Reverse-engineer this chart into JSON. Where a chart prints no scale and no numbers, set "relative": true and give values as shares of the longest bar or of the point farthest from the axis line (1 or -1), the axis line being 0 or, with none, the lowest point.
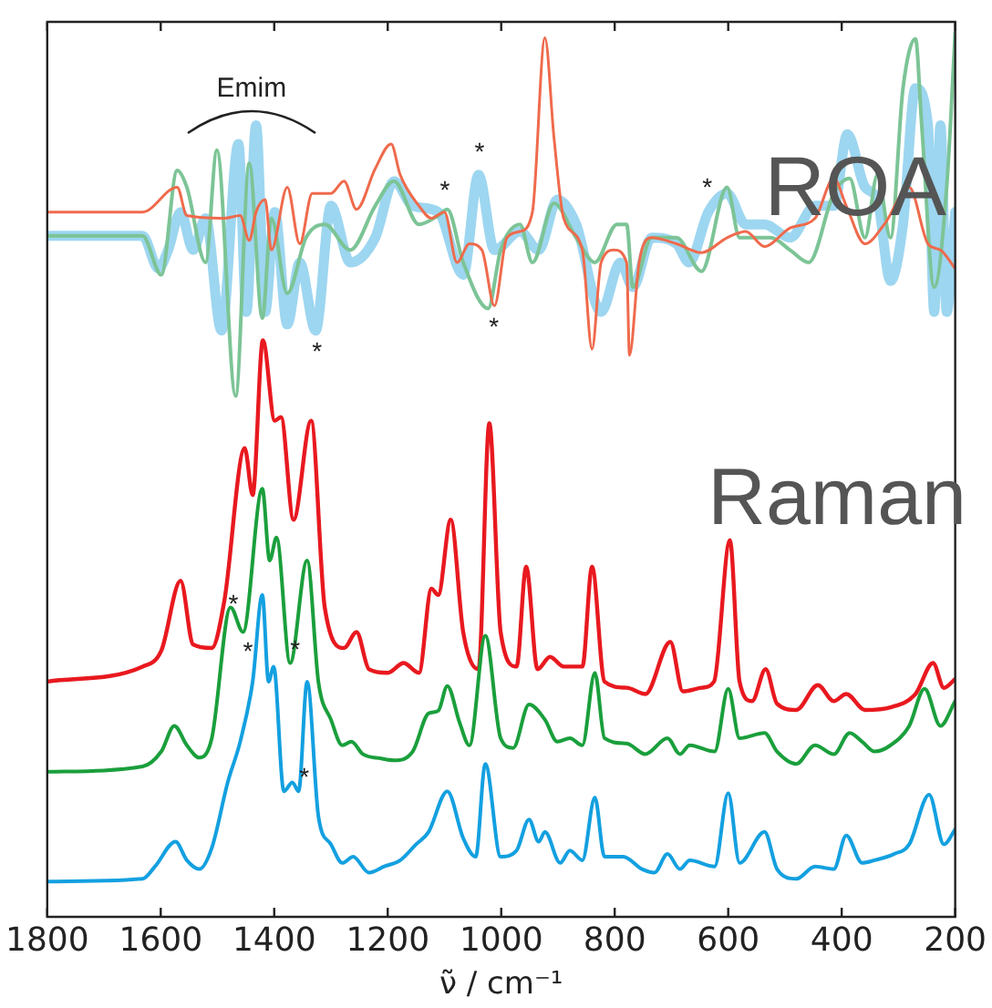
{
  "chart_data": {
    "type": "line",
    "xlabel": "ν̃ / cm⁻¹",
    "xlim": [
      1800,
      200
    ],
    "xticks": [
      1800,
      1600,
      1400,
      1200,
      1000,
      800,
      600,
      400,
      200
    ],
    "relative": true,
    "grid": false,
    "legend": false,
    "tick_labels": "x",
    "marker": "none",
    "line_style": "solid",
    "annotations": [
      "ROA",
      "Raman",
      "Emim",
      "*",
      "*",
      "*",
      "*",
      "*",
      "*",
      "*",
      "*",
      "*"
    ],
    "series": [
      {
        "color": "#9dd6f0",
        "x": [
          1800,
          1632,
          1604,
          1587,
          1565,
          1543,
          1521,
          1493,
          1463,
          1449,
          1432,
          1416,
          1399,
          1377,
          1355,
          1327,
          1300,
          1266,
          1222,
          1189,
          1156,
          1111,
          1067,
          1040,
          1012,
          967,
          934,
          901,
          868,
          824,
          790,
          768,
          735,
          691,
          669,
          635,
          602,
          569,
          536,
          491,
          447,
          414,
          390,
          359,
          337,
          314,
          292,
          270,
          248,
          237,
          226,
          215,
          200
        ],
        "values": [
          0.77,
          0.77,
          0.733,
          0.754,
          0.797,
          0.754,
          0.79,
          0.663,
          0.874,
          0.684,
          0.895,
          0.684,
          0.797,
          0.67,
          0.74,
          0.663,
          0.804,
          0.74,
          0.768,
          0.832,
          0.804,
          0.797,
          0.726,
          0.839,
          0.754,
          0.775,
          0.754,
          0.811,
          0.783,
          0.684,
          0.74,
          0.712,
          0.768,
          0.761,
          0.74,
          0.797,
          0.818,
          0.783,
          0.783,
          0.768,
          0.804,
          0.804,
          0.885,
          0.825,
          0.811,
          0.719,
          0.783,
          0.937,
          0.895,
          0.684,
          0.895,
          0.684,
          0.797
        ]
      },
      {
        "color": "#7cc496",
        "x": [
          1800,
          1632,
          1599,
          1571,
          1554,
          1521,
          1501,
          1468,
          1444,
          1421,
          1405,
          1377,
          1344,
          1311,
          1266,
          1222,
          1189,
          1145,
          1111,
          1095,
          1067,
          1023,
          1001,
          967,
          945,
          907,
          868,
          835,
          796,
          779,
          768,
          735,
          691,
          647,
          602,
          580,
          525,
          491,
          458,
          414,
          386,
          359,
          337,
          314,
          292,
          270,
          259,
          237,
          215,
          200
        ],
        "values": [
          0.77,
          0.77,
          0.726,
          0.844,
          0.825,
          0.74,
          0.867,
          0.589,
          0.852,
          0.677,
          0.79,
          0.705,
          0.768,
          0.783,
          0.754,
          0.804,
          0.832,
          0.783,
          0.793,
          0.8,
          0.74,
          0.688,
          0.754,
          0.783,
          0.74,
          0.807,
          0.768,
          0.74,
          0.783,
          0.783,
          0.712,
          0.768,
          0.768,
          0.73,
          0.825,
          0.768,
          0.768,
          0.754,
          0.74,
          0.818,
          0.835,
          0.768,
          0.839,
          0.768,
          0.937,
          0.993,
          0.895,
          0.712,
          0.825,
          1.0
        ]
      },
      {
        "color": "#ef6a4c",
        "x": [
          1800,
          1632,
          1571,
          1554,
          1488,
          1460,
          1444,
          1432,
          1416,
          1405,
          1377,
          1355,
          1333,
          1300,
          1277,
          1255,
          1222,
          1194,
          1178,
          1145,
          1123,
          1100,
          1078,
          1056,
          1034,
          1012,
          990,
          967,
          945,
          923,
          907,
          890,
          857,
          840,
          824,
          801,
          779,
          774,
          757,
          735,
          691,
          647,
          602,
          569,
          536,
          491,
          447,
          414,
          392,
          359,
          325,
          281,
          248,
          226,
          200
        ],
        "values": [
          0.797,
          0.797,
          0.825,
          0.793,
          0.79,
          0.793,
          0.765,
          0.797,
          0.811,
          0.754,
          0.825,
          0.761,
          0.818,
          0.818,
          0.832,
          0.8,
          0.846,
          0.874,
          0.839,
          0.804,
          0.79,
          0.797,
          0.74,
          0.761,
          0.754,
          0.691,
          0.768,
          0.775,
          0.797,
          0.994,
          0.881,
          0.79,
          0.754,
          0.642,
          0.74,
          0.754,
          0.74,
          0.635,
          0.74,
          0.768,
          0.761,
          0.751,
          0.768,
          0.775,
          0.758,
          0.779,
          0.79,
          0.835,
          0.804,
          0.761,
          0.783,
          0.825,
          0.761,
          0.754,
          0.733
        ]
      },
      {
        "color": "#e8191f",
        "x": [
          1800,
          1632,
          1599,
          1565,
          1543,
          1510,
          1488,
          1452,
          1438,
          1420,
          1399,
          1388,
          1366,
          1335,
          1311,
          1277,
          1255,
          1233,
          1200,
          1172,
          1145,
          1123,
          1111,
          1089,
          1067,
          1040,
          1021,
          1001,
          973,
          956,
          936,
          914,
          890,
          857,
          840,
          818,
          779,
          746,
          702,
          680,
          647,
          625,
          597,
          580,
          558,
          534,
          514,
          480,
          442,
          414,
          392,
          359,
          314,
          270,
          239,
          220,
          200
        ],
        "values": [
          0.266,
          0.283,
          0.301,
          0.38,
          0.308,
          0.304,
          0.357,
          0.53,
          0.477,
          0.652,
          0.561,
          0.565,
          0.449,
          0.561,
          0.35,
          0.304,
          0.322,
          0.28,
          0.276,
          0.287,
          0.276,
          0.371,
          0.364,
          0.449,
          0.322,
          0.28,
          0.558,
          0.322,
          0.283,
          0.396,
          0.28,
          0.294,
          0.283,
          0.283,
          0.396,
          0.266,
          0.259,
          0.252,
          0.311,
          0.255,
          0.259,
          0.266,
          0.426,
          0.266,
          0.244,
          0.28,
          0.241,
          0.234,
          0.262,
          0.244,
          0.252,
          0.234,
          0.237,
          0.252,
          0.287,
          0.259,
          0.269
        ]
      },
      {
        "color": "#1a9f3c",
        "x": [
          1800,
          1632,
          1599,
          1576,
          1554,
          1532,
          1510,
          1477,
          1455,
          1421,
          1408,
          1396,
          1372,
          1342,
          1322,
          1300,
          1280,
          1264,
          1244,
          1211,
          1189,
          1156,
          1128,
          1111,
          1095,
          1073,
          1056,
          1028,
          1001,
          979,
          951,
          923,
          901,
          879,
          857,
          835,
          818,
          779,
          746,
          707,
          685,
          668,
          624,
          600,
          580,
          536,
          514,
          480,
          447,
          414,
          386,
          364,
          342,
          314,
          281,
          254,
          226,
          200
        ],
        "values": [
          0.164,
          0.17,
          0.187,
          0.216,
          0.194,
          0.18,
          0.202,
          0.35,
          0.322,
          0.484,
          0.403,
          0.429,
          0.287,
          0.403,
          0.265,
          0.223,
          0.194,
          0.198,
          0.184,
          0.179,
          0.177,
          0.187,
          0.23,
          0.233,
          0.261,
          0.219,
          0.194,
          0.318,
          0.202,
          0.191,
          0.24,
          0.223,
          0.198,
          0.202,
          0.194,
          0.276,
          0.202,
          0.196,
          0.184,
          0.202,
          0.184,
          0.194,
          0.187,
          0.258,
          0.202,
          0.208,
          0.187,
          0.173,
          0.194,
          0.184,
          0.208,
          0.198,
          0.187,
          0.194,
          0.216,
          0.258,
          0.216,
          0.244
        ]
      },
      {
        "color": "#13a0e0",
        "x": [
          1800,
          1632,
          1610,
          1574,
          1554,
          1532,
          1510,
          1482,
          1460,
          1438,
          1421,
          1410,
          1401,
          1383,
          1368,
          1357,
          1342,
          1322,
          1300,
          1280,
          1261,
          1233,
          1206,
          1178,
          1150,
          1128,
          1095,
          1067,
          1045,
          1028,
          1001,
          973,
          951,
          934,
          923,
          896,
          879,
          857,
          835,
          818,
          785,
          752,
          730,
          707,
          685,
          668,
          624,
          600,
          580,
          536,
          514,
          480,
          447,
          414,
          392,
          364,
          342,
          308,
          281,
          246,
          220,
          200
        ],
        "values": [
          0.04,
          0.043,
          0.057,
          0.085,
          0.064,
          0.054,
          0.078,
          0.152,
          0.198,
          0.266,
          0.364,
          0.266,
          0.283,
          0.142,
          0.152,
          0.142,
          0.266,
          0.113,
          0.082,
          0.061,
          0.068,
          0.05,
          0.057,
          0.064,
          0.082,
          0.096,
          0.142,
          0.089,
          0.068,
          0.173,
          0.068,
          0.075,
          0.11,
          0.085,
          0.096,
          0.061,
          0.075,
          0.064,
          0.135,
          0.068,
          0.068,
          0.054,
          0.05,
          0.071,
          0.054,
          0.064,
          0.057,
          0.14,
          0.061,
          0.096,
          0.054,
          0.043,
          0.057,
          0.054,
          0.092,
          0.061,
          0.064,
          0.071,
          0.082,
          0.138,
          0.082,
          0.099
        ]
      }
    ]
  }
}
